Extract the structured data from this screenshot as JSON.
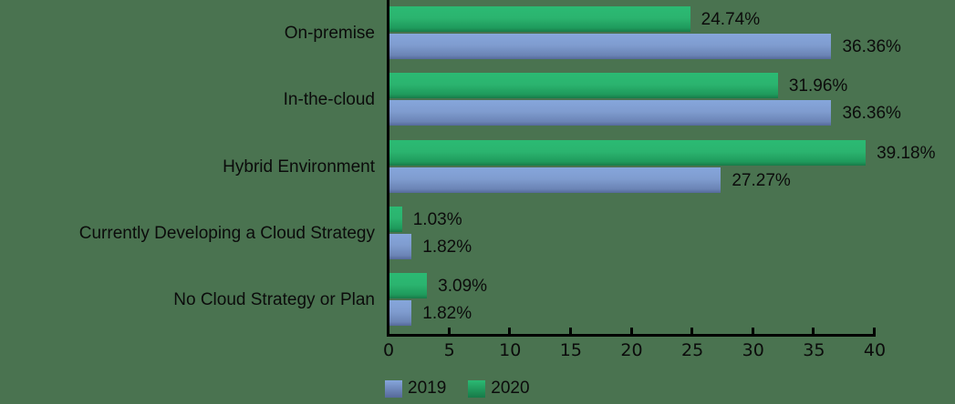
{
  "chart_data": {
    "type": "bar",
    "orientation": "horizontal",
    "title": "",
    "xlabel": "",
    "ylabel": "",
    "xlim": [
      0,
      40
    ],
    "x_ticks": [
      "0",
      "5",
      "10",
      "15",
      "20",
      "25",
      "30",
      "35",
      "40"
    ],
    "grid": false,
    "legend_position": "bottom-left",
    "categories": [
      "On-premise",
      "In-the-cloud",
      "Hybrid Environment",
      "Currently Developing a Cloud Strategy",
      "No Cloud Strategy or Plan"
    ],
    "series": [
      {
        "name": "2020",
        "color": "#2bb46f",
        "values": [
          24.74,
          31.96,
          39.18,
          1.03,
          3.09
        ],
        "labels": [
          "24.74%",
          "31.96%",
          "39.18%",
          "1.03%",
          "3.09%"
        ]
      },
      {
        "name": "2019",
        "color": "#7f9ccf",
        "values": [
          36.36,
          36.36,
          27.27,
          1.82,
          1.82
        ],
        "labels": [
          "36.36%",
          "36.36%",
          "27.27%",
          "1.82%",
          "1.82%"
        ]
      }
    ]
  },
  "legend": {
    "items": [
      {
        "label": "2019"
      },
      {
        "label": "2020"
      }
    ]
  },
  "colors": {
    "background": "#4a7350",
    "green": "#2bb46f",
    "blue": "#7f9ccf"
  }
}
